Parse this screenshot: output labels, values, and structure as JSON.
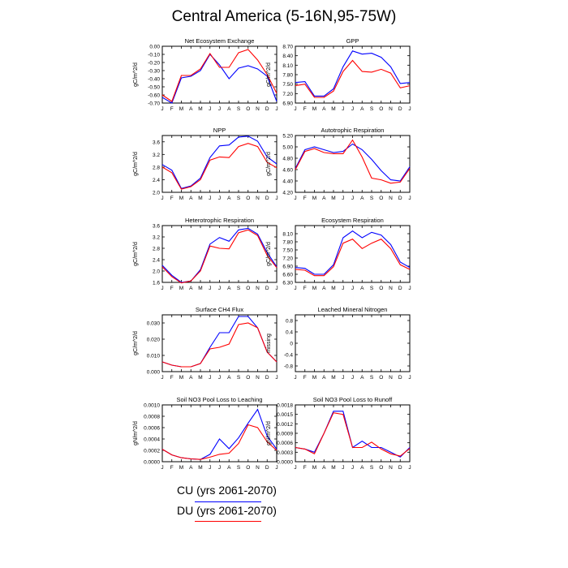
{
  "title": "Central America (5-16N,95-75W)",
  "legend": [
    {
      "label": "CU (yrs 2061-2070)",
      "color": "#0000ff"
    },
    {
      "label": "DU (yrs 2061-2070)",
      "color": "#ff0000"
    }
  ],
  "chart_data": [
    {
      "type": "line",
      "title": "Net Ecosystem Exchange",
      "ylabel": "gC/m^2/d",
      "categories": [
        "J",
        "F",
        "M",
        "A",
        "M",
        "J",
        "J",
        "A",
        "S",
        "O",
        "N",
        "D",
        "J"
      ],
      "ylim": [
        -0.7,
        0.0
      ],
      "yticks": [
        "0.00",
        "-0.10",
        "-0.20",
        "-0.30",
        "-0.40",
        "-0.50",
        "-0.60",
        "-0.70"
      ],
      "yticks_v": [
        0,
        -0.1,
        -0.2,
        -0.3,
        -0.4,
        -0.5,
        -0.6,
        -0.7
      ],
      "series": [
        {
          "color": "#0000ff",
          "values": [
            -0.63,
            -0.7,
            -0.39,
            -0.37,
            -0.3,
            -0.1,
            -0.23,
            -0.4,
            -0.27,
            -0.24,
            -0.28,
            -0.37,
            -0.68
          ]
        },
        {
          "color": "#ff0000",
          "values": [
            -0.6,
            -0.68,
            -0.36,
            -0.36,
            -0.28,
            -0.09,
            -0.26,
            -0.26,
            -0.08,
            -0.04,
            -0.17,
            -0.35,
            -0.58
          ]
        }
      ]
    },
    {
      "type": "line",
      "title": "GPP",
      "ylabel": "gC/m^2/d",
      "categories": [
        "J",
        "F",
        "M",
        "A",
        "M",
        "J",
        "J",
        "A",
        "S",
        "O",
        "N",
        "D",
        "J"
      ],
      "ylim": [
        6.9,
        8.7
      ],
      "yticks": [
        "8.70",
        "8.40",
        "8.10",
        "7.80",
        "7.50",
        "7.20",
        "6.90"
      ],
      "yticks_v": [
        8.7,
        8.4,
        8.1,
        7.8,
        7.5,
        7.2,
        6.9
      ],
      "series": [
        {
          "color": "#0000ff",
          "values": [
            7.55,
            7.58,
            7.12,
            7.12,
            7.35,
            8.05,
            8.55,
            8.45,
            8.48,
            8.35,
            8.05,
            7.52,
            7.55
          ]
        },
        {
          "color": "#ff0000",
          "values": [
            7.45,
            7.5,
            7.08,
            7.08,
            7.28,
            7.9,
            8.25,
            7.9,
            7.88,
            7.97,
            7.85,
            7.38,
            7.45
          ]
        }
      ]
    },
    {
      "type": "line",
      "title": "NPP",
      "ylabel": "gC/m^2/d",
      "categories": [
        "J",
        "F",
        "M",
        "A",
        "M",
        "J",
        "J",
        "A",
        "S",
        "O",
        "N",
        "D",
        "J"
      ],
      "ylim": [
        2.0,
        3.8
      ],
      "yticks": [
        "3.6",
        "3.2",
        "2.8",
        "2.4",
        "2.0"
      ],
      "yticks_v": [
        3.6,
        3.2,
        2.8,
        2.4,
        2.0
      ],
      "series": [
        {
          "color": "#0000ff",
          "values": [
            2.88,
            2.7,
            2.12,
            2.2,
            2.45,
            3.1,
            3.47,
            3.5,
            3.75,
            3.78,
            3.62,
            3.12,
            2.9
          ]
        },
        {
          "color": "#ff0000",
          "values": [
            2.8,
            2.62,
            2.1,
            2.18,
            2.4,
            3.02,
            3.12,
            3.1,
            3.45,
            3.55,
            3.45,
            2.95,
            2.78
          ]
        }
      ]
    },
    {
      "type": "line",
      "title": "Autotrophic Respiration",
      "ylabel": "gC/m^2/d",
      "categories": [
        "J",
        "F",
        "M",
        "A",
        "M",
        "J",
        "J",
        "A",
        "S",
        "O",
        "N",
        "D",
        "J"
      ],
      "ylim": [
        4.2,
        5.2
      ],
      "yticks": [
        "5.20",
        "5.00",
        "4.80",
        "4.60",
        "4.40",
        "4.20"
      ],
      "yticks_v": [
        5.2,
        5.0,
        4.8,
        4.6,
        4.4,
        4.2
      ],
      "series": [
        {
          "color": "#0000ff",
          "values": [
            4.62,
            4.95,
            5.0,
            4.95,
            4.9,
            4.92,
            5.05,
            4.95,
            4.78,
            4.58,
            4.42,
            4.4,
            4.65
          ]
        },
        {
          "color": "#ff0000",
          "values": [
            4.6,
            4.92,
            4.97,
            4.9,
            4.88,
            4.88,
            5.12,
            4.82,
            4.45,
            4.42,
            4.36,
            4.38,
            4.62
          ]
        }
      ]
    },
    {
      "type": "line",
      "title": "Heterotrophic Respiration",
      "ylabel": "gC/m^2/d",
      "categories": [
        "J",
        "F",
        "M",
        "A",
        "M",
        "J",
        "J",
        "A",
        "S",
        "O",
        "N",
        "D",
        "J"
      ],
      "ylim": [
        1.6,
        3.6
      ],
      "yticks": [
        "3.6",
        "3.2",
        "2.8",
        "2.4",
        "2.0",
        "1.6"
      ],
      "yticks_v": [
        3.6,
        3.2,
        2.8,
        2.4,
        2.0,
        1.6
      ],
      "series": [
        {
          "color": "#0000ff",
          "values": [
            2.2,
            1.85,
            1.6,
            1.65,
            2.05,
            2.95,
            3.18,
            3.05,
            3.45,
            3.5,
            3.3,
            2.65,
            2.15
          ]
        },
        {
          "color": "#ff0000",
          "values": [
            2.15,
            1.8,
            1.58,
            1.65,
            2.0,
            2.88,
            2.8,
            2.78,
            3.35,
            3.45,
            3.25,
            2.55,
            2.12
          ]
        }
      ]
    },
    {
      "type": "line",
      "title": "Ecosystem Respiration",
      "ylabel": "gC/m^2/d",
      "categories": [
        "J",
        "F",
        "M",
        "A",
        "M",
        "J",
        "J",
        "A",
        "S",
        "O",
        "N",
        "D",
        "J"
      ],
      "ylim": [
        6.3,
        8.4
      ],
      "yticks": [
        "8.10",
        "7.80",
        "7.50",
        "7.20",
        "6.90",
        "6.60",
        "6.30"
      ],
      "yticks_v": [
        8.1,
        7.8,
        7.5,
        7.2,
        6.9,
        6.6,
        6.3
      ],
      "series": [
        {
          "color": "#0000ff",
          "values": [
            6.85,
            6.82,
            6.6,
            6.6,
            6.95,
            7.95,
            8.2,
            7.95,
            8.15,
            8.05,
            7.7,
            7.05,
            6.85
          ]
        },
        {
          "color": "#ff0000",
          "values": [
            6.78,
            6.75,
            6.55,
            6.55,
            6.88,
            7.75,
            7.9,
            7.55,
            7.75,
            7.9,
            7.55,
            6.95,
            6.78
          ]
        }
      ]
    },
    {
      "type": "line",
      "title": "Surface CH4 Flux",
      "ylabel": "gC/m^2/d",
      "categories": [
        "J",
        "F",
        "M",
        "A",
        "M",
        "J",
        "J",
        "A",
        "S",
        "O",
        "N",
        "D",
        "J"
      ],
      "ylim": [
        0.0,
        0.035
      ],
      "yticks": [
        "0.030",
        "0.020",
        "0.010",
        "0.000"
      ],
      "yticks_v": [
        0.03,
        0.02,
        0.01,
        0.0
      ],
      "series": [
        {
          "color": "#0000ff",
          "values": [
            0.006,
            0.004,
            0.003,
            0.003,
            0.005,
            0.015,
            0.024,
            0.024,
            0.034,
            0.034,
            0.027,
            0.012,
            0.006
          ]
        },
        {
          "color": "#ff0000",
          "values": [
            0.006,
            0.004,
            0.003,
            0.003,
            0.005,
            0.014,
            0.015,
            0.017,
            0.029,
            0.03,
            0.027,
            0.012,
            0.006
          ]
        }
      ]
    },
    {
      "type": "line",
      "title": "Leached Mineral Nitrogen",
      "ylabel": "missing",
      "categories": [
        "J",
        "F",
        "M",
        "A",
        "M",
        "J",
        "J",
        "A",
        "S",
        "O",
        "N",
        "D",
        "J"
      ],
      "ylim": [
        -1.0,
        1.0
      ],
      "yticks": [
        "0.8",
        "0.4",
        "0",
        "-0.4",
        "-0.8"
      ],
      "yticks_v": [
        0.8,
        0.4,
        0,
        -0.4,
        -0.8
      ],
      "series": []
    },
    {
      "type": "line",
      "title": "Soil NO3 Pool Loss to Leaching",
      "ylabel": "gN/m^2/d",
      "categories": [
        "J",
        "F",
        "M",
        "A",
        "M",
        "J",
        "J",
        "A",
        "S",
        "O",
        "N",
        "D",
        "J"
      ],
      "ylim": [
        0.0,
        0.001
      ],
      "yticks": [
        "0.0010",
        "0.0008",
        "0.0006",
        "0.0004",
        "0.0002",
        "0.0000"
      ],
      "yticks_v": [
        0.001,
        0.0008,
        0.0006,
        0.0004,
        0.0002,
        0.0
      ],
      "series": [
        {
          "color": "#0000ff",
          "values": [
            0.00022,
            0.00012,
            7e-05,
            5e-05,
            4e-05,
            0.00013,
            0.0004,
            0.00023,
            0.00042,
            0.00068,
            0.00092,
            0.00045,
            0.00022
          ]
        },
        {
          "color": "#ff0000",
          "values": [
            0.00022,
            0.00012,
            7e-05,
            5e-05,
            4e-05,
            8e-05,
            0.00013,
            0.00015,
            0.00032,
            0.00065,
            0.0006,
            0.00035,
            0.0002
          ]
        }
      ]
    },
    {
      "type": "line",
      "title": "Soil NO3 Pool Loss to Runoff",
      "ylabel": "gN/m^2/d",
      "categories": [
        "J",
        "F",
        "M",
        "A",
        "M",
        "J",
        "J",
        "A",
        "S",
        "O",
        "N",
        "D",
        "J"
      ],
      "ylim": [
        0.0,
        0.0018
      ],
      "yticks": [
        "0.0018",
        "0.0015",
        "0.0012",
        "0.0009",
        "0.0006",
        "0.0003",
        "0.0000"
      ],
      "yticks_v": [
        0.0018,
        0.0015,
        0.0012,
        0.0009,
        0.0006,
        0.0003,
        0.0
      ],
      "series": [
        {
          "color": "#0000ff",
          "values": [
            0.00045,
            0.0004,
            0.0003,
            0.0009,
            0.0016,
            0.0016,
            0.00045,
            0.00065,
            0.00045,
            0.00045,
            0.0003,
            0.00015,
            0.00045
          ]
        },
        {
          "color": "#ff0000",
          "values": [
            0.00045,
            0.0004,
            0.00025,
            0.0009,
            0.00155,
            0.0015,
            0.00045,
            0.00045,
            0.00062,
            0.0004,
            0.00025,
            0.00018,
            0.00042
          ]
        }
      ]
    }
  ]
}
